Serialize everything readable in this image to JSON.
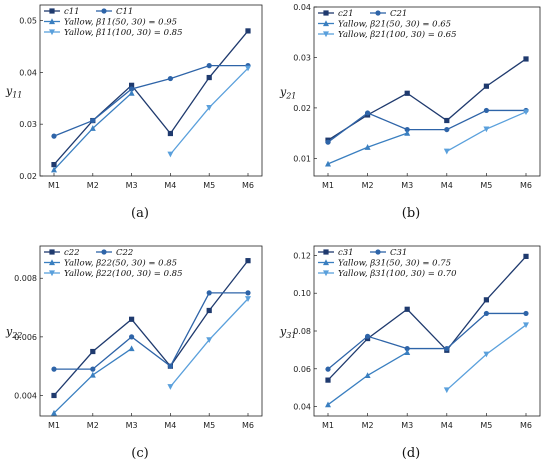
{
  "chart_data": [
    {
      "type": "line",
      "panel_label": "(a)",
      "ylabel": "y11",
      "categories": [
        "M1",
        "M2",
        "M3",
        "M4",
        "M5",
        "M6"
      ],
      "yticks": [
        0.02,
        0.03,
        0.04,
        0.05
      ],
      "ytick_labels": [
        "0.02",
        "0.03",
        "0.04",
        "0.05"
      ],
      "ylim": [
        0.02,
        0.053
      ],
      "series": [
        {
          "name": "c11",
          "color": "#1f3a6e",
          "marker": "square",
          "values": [
            0.0222,
            0.0307,
            0.0375,
            0.0282,
            0.039,
            0.048
          ]
        },
        {
          "name": "C11",
          "color": "#2e64a8",
          "marker": "circle",
          "values": [
            0.0277,
            0.0307,
            0.0368,
            0.0388,
            0.0413,
            0.0413
          ]
        },
        {
          "name": "Yallow, β11(50,30) = 0.95",
          "color": "#3a7fc0",
          "marker": "triangle-up",
          "values": [
            0.0212,
            0.0292,
            0.036,
            null,
            null,
            null
          ]
        },
        {
          "name": "Yallow, β11(100,30) = 0.85",
          "color": "#5aa0dc",
          "marker": "triangle-down",
          "values": [
            null,
            null,
            null,
            0.0242,
            0.0332,
            0.0408
          ]
        }
      ],
      "legend": [
        {
          "series": 0,
          "text": "c11"
        },
        {
          "series": 1,
          "text": "C11"
        },
        {
          "series": 2,
          "text": "Yallow, β11(50, 30) = 0.95"
        },
        {
          "series": 3,
          "text": "Yallow, β11(100, 30) = 0.85"
        }
      ],
      "legend_placement": "top-left"
    },
    {
      "type": "line",
      "panel_label": "(b)",
      "ylabel": "y21",
      "categories": [
        "M1",
        "M2",
        "M3",
        "M4",
        "M5",
        "M6"
      ],
      "yticks": [
        0.01,
        0.02,
        0.03,
        0.04
      ],
      "ytick_labels": [
        "0.01",
        "0.02",
        "0.03",
        "0.04"
      ],
      "ylim": [
        0.0065,
        0.04
      ],
      "series": [
        {
          "name": "c21",
          "color": "#1f3a6e",
          "marker": "square",
          "values": [
            0.0136,
            0.0186,
            0.0229,
            0.0175,
            0.0243,
            0.0297
          ]
        },
        {
          "name": "C21",
          "color": "#2e64a8",
          "marker": "circle",
          "values": [
            0.0132,
            0.019,
            0.0157,
            0.0157,
            0.0195,
            0.0195
          ]
        },
        {
          "name": "Yallow, β21(50,30) = 0.65",
          "color": "#3a7fc0",
          "marker": "triangle-up",
          "values": [
            0.0089,
            0.0122,
            0.015,
            null,
            null,
            null
          ]
        },
        {
          "name": "Yallow, β21(100,30) = 0.65",
          "color": "#5aa0dc",
          "marker": "triangle-down",
          "values": [
            null,
            null,
            null,
            0.0114,
            0.0158,
            0.0192
          ]
        }
      ],
      "legend": [
        {
          "series": 0,
          "text": "c21"
        },
        {
          "series": 1,
          "text": "C21"
        },
        {
          "series": 2,
          "text": "Yallow, β21(50, 30) = 0.65"
        },
        {
          "series": 3,
          "text": "Yallow, β21(100, 30) = 0.65"
        }
      ],
      "legend_placement": "top-left"
    },
    {
      "type": "line",
      "panel_label": "(c)",
      "ylabel": "y22",
      "categories": [
        "M1",
        "M2",
        "M3",
        "M4",
        "M5",
        "M6"
      ],
      "yticks": [
        0.004,
        0.006,
        0.008
      ],
      "ytick_labels": [
        "0.004",
        "0.006",
        "0.008"
      ],
      "ylim": [
        0.0033,
        0.0091
      ],
      "series": [
        {
          "name": "c22",
          "color": "#1f3a6e",
          "marker": "square",
          "values": [
            0.004,
            0.0055,
            0.0066,
            0.005,
            0.0069,
            0.0086
          ]
        },
        {
          "name": "C22",
          "color": "#2e64a8",
          "marker": "circle",
          "values": [
            0.0049,
            0.0049,
            0.006,
            0.005,
            0.0075,
            0.0075
          ]
        },
        {
          "name": "Yallow, β22(50,30) = 0.85",
          "color": "#3a7fc0",
          "marker": "triangle-up",
          "values": [
            0.0034,
            0.0047,
            0.0056,
            null,
            null,
            null
          ]
        },
        {
          "name": "Yallow, β22(100,30) = 0.85",
          "color": "#5aa0dc",
          "marker": "triangle-down",
          "values": [
            null,
            null,
            null,
            0.0043,
            0.0059,
            0.0073
          ]
        }
      ],
      "legend": [
        {
          "series": 0,
          "text": "c22"
        },
        {
          "series": 1,
          "text": "C22"
        },
        {
          "series": 2,
          "text": "Yallow, β22(50, 30) = 0.85"
        },
        {
          "series": 3,
          "text": "Yallow, β22(100, 30) = 0.85"
        }
      ],
      "legend_placement": "top-left"
    },
    {
      "type": "line",
      "panel_label": "(d)",
      "ylabel": "y31",
      "categories": [
        "M1",
        "M2",
        "M3",
        "M4",
        "M5",
        "M6"
      ],
      "yticks": [
        0.04,
        0.06,
        0.08,
        0.1,
        0.12
      ],
      "ytick_labels": [
        "0.04",
        "0.06",
        "0.08",
        "0.10",
        "0.12"
      ],
      "ylim": [
        0.035,
        0.125
      ],
      "series": [
        {
          "name": "c31",
          "color": "#1f3a6e",
          "marker": "square",
          "values": [
            0.054,
            0.076,
            0.0915,
            0.0698,
            0.0965,
            0.1195
          ]
        },
        {
          "name": "C31",
          "color": "#2e64a8",
          "marker": "circle",
          "values": [
            0.0598,
            0.0772,
            0.0707,
            0.0707,
            0.0893,
            0.0893
          ]
        },
        {
          "name": "Yallow, β31(50,30) = 0.75",
          "color": "#3a7fc0",
          "marker": "triangle-up",
          "values": [
            0.041,
            0.0565,
            0.0687,
            null,
            null,
            null
          ]
        },
        {
          "name": "Yallow, β31(100,30) = 0.70",
          "color": "#5aa0dc",
          "marker": "triangle-down",
          "values": [
            null,
            null,
            null,
            0.0488,
            0.0677,
            0.0832
          ]
        }
      ],
      "legend": [
        {
          "series": 0,
          "text": "c31"
        },
        {
          "series": 1,
          "text": "C31"
        },
        {
          "series": 2,
          "text": "Yallow, β31(50, 30) = 0.75"
        },
        {
          "series": 3,
          "text": "Yallow, β31(100, 30) = 0.70"
        }
      ],
      "legend_placement": "top-left"
    }
  ]
}
